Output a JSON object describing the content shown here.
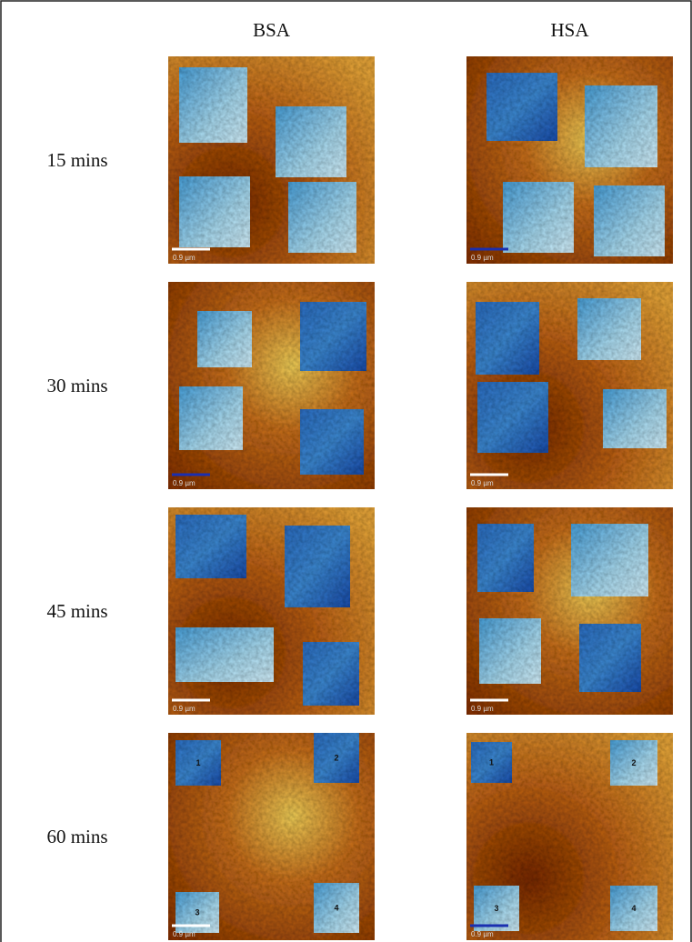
{
  "columns": [
    "BSA",
    "HSA"
  ],
  "rows": [
    {
      "label": "15 mins",
      "panels": [
        {
          "scale_bar": "0.9 µm"
        },
        {
          "scale_bar": "0.9 µm"
        }
      ]
    },
    {
      "label": "30 mins",
      "panels": [
        {
          "scale_bar": "0.9 µm"
        },
        {
          "scale_bar": "0.9 µm"
        }
      ]
    },
    {
      "label": "45 mins",
      "panels": [
        {
          "scale_bar": "0.9 µm"
        },
        {
          "scale_bar": "0.9 µm"
        }
      ]
    },
    {
      "label": "60 mins",
      "panels": [
        {
          "scale_bar": "0.9 µm",
          "square_labels": [
            "1",
            "2",
            "3",
            "4"
          ]
        },
        {
          "scale_bar": "0.9 µm",
          "square_labels": [
            "1",
            "2",
            "3",
            "4"
          ]
        }
      ]
    }
  ]
}
